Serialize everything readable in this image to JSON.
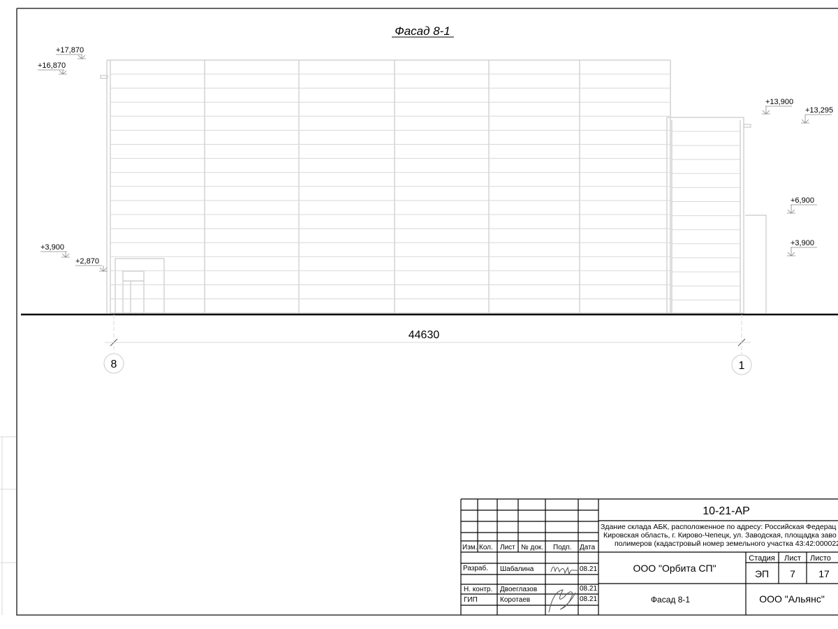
{
  "drawing": {
    "title": "Фасад 8-1",
    "overall_dimension": "44630",
    "axes": [
      {
        "label": "8"
      },
      {
        "label": "1"
      }
    ],
    "elevations_left": [
      "+17,870",
      "+16,870",
      "+3,900",
      "+2,870"
    ],
    "elevations_right": [
      "+13,900",
      "+13,295",
      "+6,900",
      "+3,900"
    ]
  },
  "title_block": {
    "project_code": "10-21-АР",
    "description": [
      "Здание склада АБК, расположенное по адресу: Российская Федерац",
      "Кировская область, г. Кирово-Чепецк, ул. Заводская, площадка заво",
      "полимеров (кадастровый номер земельного участка 43:42:000022:"
    ],
    "headers": [
      "Изм.",
      "Кол.",
      "Лист",
      "№ док.",
      "Подп.",
      "Дата"
    ],
    "roles": [
      {
        "role": "Разраб.",
        "name": "Шабалина",
        "date": "08.21"
      },
      {
        "role": "Н. контр.",
        "name": "Двоеглазов",
        "date": "08.21"
      },
      {
        "role": "ГИП",
        "name": "Коротаев",
        "date": "08.21"
      }
    ],
    "organization": "ООО \"Орбита СП\"",
    "sheet_title": "Фасад 8-1",
    "stage_label": "Стадия",
    "sheet_label": "Лист",
    "sheets_label": "Листо",
    "stage": "ЭП",
    "sheet": "7",
    "sheets": "17",
    "company": "ООО \"Альянс\""
  }
}
